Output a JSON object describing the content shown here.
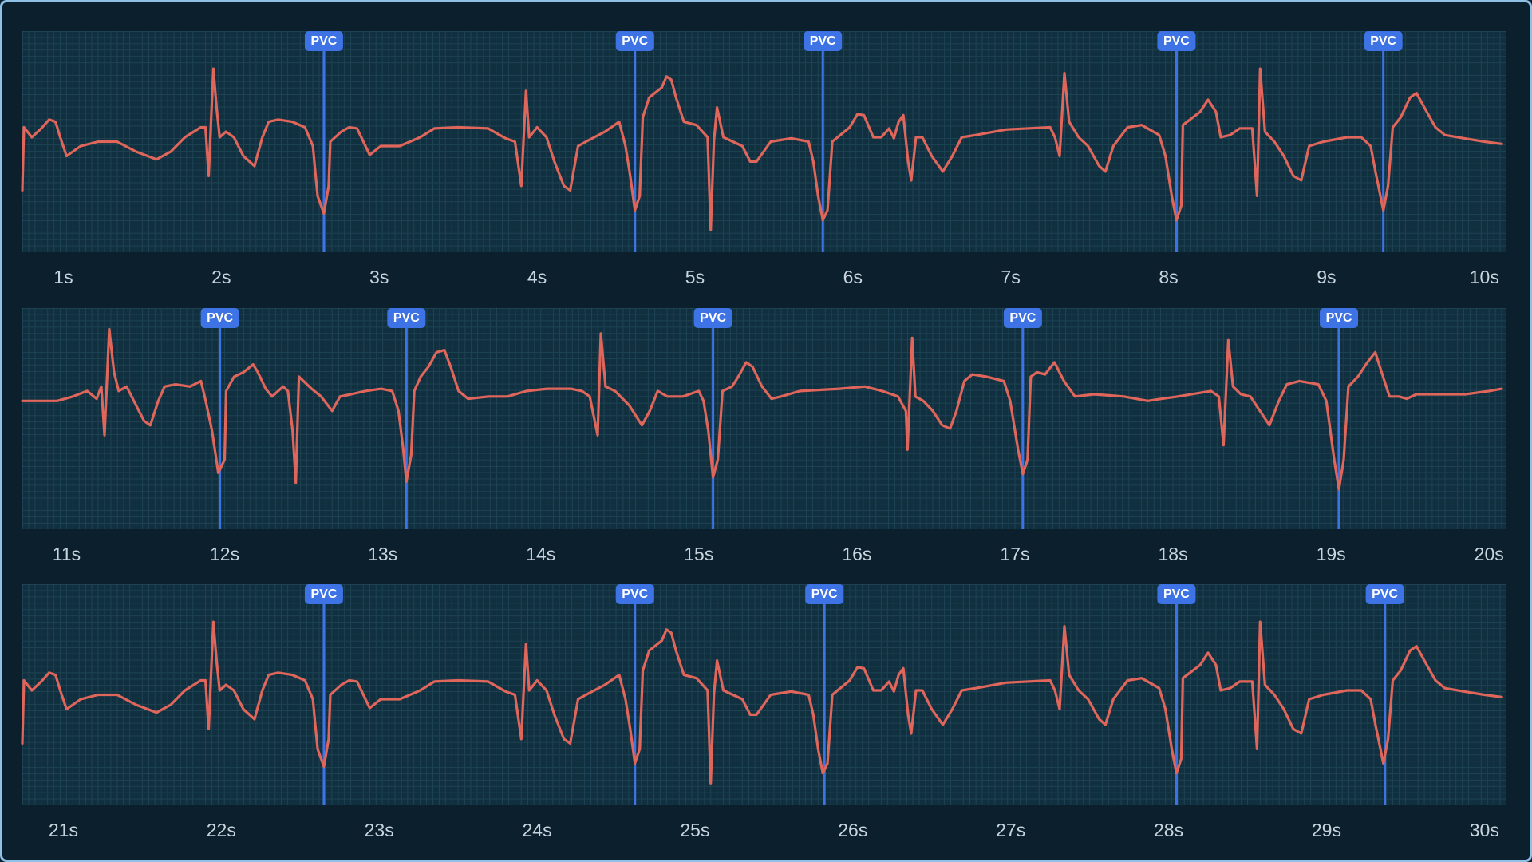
{
  "chart_data": [
    {
      "type": "line",
      "color": "#e0665b",
      "grid": true,
      "marker_color": "#3e73e6",
      "xlim": [
        0.74,
        10.14
      ],
      "ylim": [
        -1,
        1
      ],
      "xticks": [
        {
          "value": 1,
          "label": "1s"
        },
        {
          "value": 2,
          "label": "2s"
        },
        {
          "value": 3,
          "label": "3s"
        },
        {
          "value": 4,
          "label": "4s"
        },
        {
          "value": 5,
          "label": "5s"
        },
        {
          "value": 6,
          "label": "6s"
        },
        {
          "value": 7,
          "label": "7s"
        },
        {
          "value": 8,
          "label": "8s"
        },
        {
          "value": 9,
          "label": "9s"
        },
        {
          "value": 10,
          "label": "10s"
        }
      ],
      "annotations": [
        {
          "x": 2.65,
          "label": "PVC"
        },
        {
          "x": 4.62,
          "label": "PVC"
        },
        {
          "x": 5.81,
          "label": "PVC"
        },
        {
          "x": 8.05,
          "label": "PVC"
        },
        {
          "x": 9.36,
          "label": "PVC"
        }
      ],
      "x": [
        0.74,
        0.75,
        0.8,
        0.86,
        0.91,
        0.95,
        0.98,
        1.02,
        1.11,
        1.22,
        1.34,
        1.46,
        1.59,
        1.68,
        1.77,
        1.87,
        1.9,
        1.92,
        1.95,
        1.97,
        1.99,
        2.03,
        2.08,
        2.14,
        2.21,
        2.26,
        2.3,
        2.36,
        2.45,
        2.53,
        2.58,
        2.61,
        2.65,
        2.68,
        2.69,
        2.76,
        2.81,
        2.86,
        2.9,
        2.94,
        3.01,
        3.13,
        3.26,
        3.35,
        3.5,
        3.69,
        3.8,
        3.86,
        3.9,
        3.93,
        3.95,
        4.0,
        4.06,
        4.11,
        4.17,
        4.21,
        4.26,
        4.31,
        4.43,
        4.52,
        4.56,
        4.59,
        4.62,
        4.65,
        4.67,
        4.71,
        4.79,
        4.82,
        4.85,
        4.88,
        4.93,
        5.01,
        5.08,
        5.1,
        5.12,
        5.14,
        5.18,
        5.3,
        5.35,
        5.39,
        5.48,
        5.61,
        5.72,
        5.75,
        5.78,
        5.81,
        5.84,
        5.87,
        5.98,
        6.03,
        6.07,
        6.13,
        6.18,
        6.23,
        6.26,
        6.29,
        6.32,
        6.35,
        6.37,
        6.4,
        6.44,
        6.5,
        6.57,
        6.63,
        6.69,
        6.78,
        6.97,
        7.25,
        7.28,
        7.31,
        7.34,
        7.37,
        7.43,
        7.49,
        7.56,
        7.6,
        7.65,
        7.74,
        7.83,
        7.94,
        7.98,
        8.02,
        8.05,
        8.08,
        8.09,
        8.2,
        8.25,
        8.3,
        8.33,
        8.39,
        8.45,
        8.53,
        8.56,
        8.58,
        8.61,
        8.67,
        8.73,
        8.79,
        8.84,
        8.89,
        8.98,
        9.13,
        9.22,
        9.28,
        9.31,
        9.36,
        9.39,
        9.42,
        9.47,
        9.53,
        9.57,
        9.62,
        9.69,
        9.75,
        9.87,
        10.0,
        10.11
      ],
      "values": [
        -0.44,
        0.13,
        0.04,
        0.12,
        0.2,
        0.18,
        0.04,
        -0.13,
        -0.04,
        0,
        0,
        -0.09,
        -0.16,
        -0.09,
        0.04,
        0.13,
        0.13,
        -0.31,
        0.66,
        0.31,
        0.04,
        0.09,
        0.04,
        -0.13,
        -0.22,
        0.04,
        0.18,
        0.2,
        0.18,
        0.13,
        -0.04,
        -0.49,
        -0.65,
        -0.4,
        0,
        0.09,
        0.13,
        0.12,
        0,
        -0.12,
        -0.04,
        -0.04,
        0.04,
        0.12,
        0.13,
        0.12,
        0.03,
        0,
        -0.4,
        0.46,
        0.04,
        0.13,
        0.04,
        -0.18,
        -0.4,
        -0.44,
        -0.04,
        0,
        0.09,
        0.18,
        -0.04,
        -0.31,
        -0.62,
        -0.49,
        0.22,
        0.4,
        0.49,
        0.59,
        0.56,
        0.4,
        0.18,
        0.15,
        0.04,
        -0.8,
        0,
        0.31,
        0.04,
        -0.04,
        -0.18,
        -0.18,
        0,
        0.03,
        0,
        -0.18,
        -0.49,
        -0.71,
        -0.62,
        0,
        0.13,
        0.25,
        0.24,
        0.04,
        0.04,
        0.12,
        0.03,
        0.18,
        0.24,
        -0.18,
        -0.35,
        0.04,
        0.04,
        -0.13,
        -0.27,
        -0.13,
        0.04,
        0.06,
        0.11,
        0.13,
        0.04,
        -0.13,
        0.62,
        0.18,
        0.04,
        -0.04,
        -0.22,
        -0.27,
        -0.04,
        0.13,
        0.15,
        0.06,
        -0.13,
        -0.49,
        -0.71,
        -0.58,
        0.15,
        0.27,
        0.38,
        0.27,
        0.04,
        0.06,
        0.12,
        0.12,
        -0.49,
        0.66,
        0.09,
        0,
        -0.13,
        -0.31,
        -0.35,
        -0.04,
        0,
        0.04,
        0.04,
        -0.04,
        -0.27,
        -0.62,
        -0.4,
        0.13,
        0.22,
        0.4,
        0.44,
        0.31,
        0.13,
        0.06,
        0.03,
        0,
        -0.02
      ]
    },
    {
      "type": "line",
      "color": "#e0665b",
      "grid": true,
      "marker_color": "#3e73e6",
      "xlim": [
        10.72,
        20.11
      ],
      "ylim": [
        -1,
        1
      ],
      "xticks": [
        {
          "value": 11,
          "label": "11s"
        },
        {
          "value": 12,
          "label": "12s"
        },
        {
          "value": 13,
          "label": "13s"
        },
        {
          "value": 14,
          "label": "14s"
        },
        {
          "value": 15,
          "label": "15s"
        },
        {
          "value": 16,
          "label": "16s"
        },
        {
          "value": 17,
          "label": "17s"
        },
        {
          "value": 18,
          "label": "18s"
        },
        {
          "value": 19,
          "label": "19s"
        },
        {
          "value": 20,
          "label": "20s"
        }
      ],
      "annotations": [
        {
          "x": 11.97,
          "label": "PVC"
        },
        {
          "x": 13.15,
          "label": "PVC"
        },
        {
          "x": 15.09,
          "label": "PVC"
        },
        {
          "x": 17.05,
          "label": "PVC"
        },
        {
          "x": 19.05,
          "label": "PVC"
        }
      ],
      "x": [
        10.72,
        10.94,
        11.04,
        11.13,
        11.19,
        11.22,
        11.24,
        11.27,
        11.3,
        11.33,
        11.38,
        11.44,
        11.49,
        11.53,
        11.58,
        11.62,
        11.69,
        11.78,
        11.85,
        11.88,
        11.92,
        11.96,
        12.0,
        12.01,
        12.06,
        12.12,
        12.18,
        12.21,
        12.26,
        12.3,
        12.37,
        12.4,
        12.43,
        12.45,
        12.47,
        12.55,
        12.61,
        12.68,
        12.73,
        12.8,
        12.89,
        12.99,
        13.06,
        13.1,
        13.13,
        13.15,
        13.18,
        13.2,
        13.24,
        13.29,
        13.34,
        13.39,
        13.43,
        13.48,
        13.54,
        13.67,
        13.79,
        13.91,
        14.04,
        14.19,
        14.26,
        14.31,
        14.36,
        14.38,
        14.41,
        14.47,
        14.56,
        14.64,
        14.69,
        14.74,
        14.8,
        14.9,
        15.0,
        15.03,
        15.06,
        15.09,
        15.12,
        15.15,
        15.21,
        15.25,
        15.3,
        15.34,
        15.4,
        15.46,
        15.52,
        15.64,
        15.89,
        16.05,
        16.16,
        16.26,
        16.31,
        16.32,
        16.35,
        16.37,
        16.42,
        16.48,
        16.54,
        16.59,
        16.63,
        16.68,
        16.73,
        16.82,
        16.93,
        16.97,
        17.02,
        17.05,
        17.08,
        17.1,
        17.14,
        17.19,
        17.25,
        17.31,
        17.38,
        17.5,
        17.69,
        17.84,
        17.93,
        18.03,
        18.24,
        18.29,
        18.32,
        18.35,
        18.38,
        18.43,
        18.49,
        18.55,
        18.61,
        18.67,
        18.72,
        18.8,
        18.92,
        18.97,
        19.02,
        19.05,
        19.08,
        19.11,
        19.17,
        19.23,
        19.28,
        19.32,
        19.37,
        19.43,
        19.48,
        19.54,
        19.85,
        20.0,
        20.08
      ],
      "values": [
        0.16,
        0.16,
        0.2,
        0.25,
        0.18,
        0.29,
        -0.15,
        0.81,
        0.42,
        0.25,
        0.29,
        0.12,
        -0.02,
        -0.06,
        0.16,
        0.29,
        0.31,
        0.29,
        0.34,
        0.16,
        -0.11,
        -0.49,
        -0.37,
        0.25,
        0.38,
        0.42,
        0.49,
        0.42,
        0.27,
        0.2,
        0.29,
        0.25,
        -0.11,
        -0.58,
        0.38,
        0.27,
        0.2,
        0.07,
        0.2,
        0.22,
        0.25,
        0.27,
        0.25,
        0.07,
        -0.28,
        -0.57,
        -0.33,
        0.25,
        0.38,
        0.47,
        0.6,
        0.62,
        0.47,
        0.25,
        0.18,
        0.2,
        0.2,
        0.25,
        0.27,
        0.27,
        0.25,
        0.2,
        -0.15,
        0.77,
        0.29,
        0.25,
        0.12,
        -0.06,
        0.07,
        0.25,
        0.2,
        0.2,
        0.25,
        0.16,
        -0.11,
        -0.53,
        -0.37,
        0.25,
        0.29,
        0.38,
        0.51,
        0.47,
        0.29,
        0.18,
        0.2,
        0.25,
        0.27,
        0.29,
        0.25,
        0.2,
        0.07,
        -0.28,
        0.73,
        0.2,
        0.16,
        0.07,
        -0.06,
        -0.09,
        0.07,
        0.34,
        0.4,
        0.38,
        0.34,
        0.16,
        -0.28,
        -0.5,
        -0.37,
        0.38,
        0.42,
        0.4,
        0.51,
        0.34,
        0.2,
        0.22,
        0.2,
        0.16,
        0.18,
        0.2,
        0.25,
        0.2,
        -0.24,
        0.71,
        0.29,
        0.22,
        0.2,
        0.07,
        -0.06,
        0.16,
        0.31,
        0.34,
        0.31,
        0.16,
        -0.37,
        -0.64,
        -0.37,
        0.29,
        0.38,
        0.51,
        0.6,
        0.42,
        0.2,
        0.2,
        0.18,
        0.22,
        0.22,
        0.25,
        0.27
      ]
    },
    {
      "type": "line",
      "color": "#e0665b",
      "grid": true,
      "marker_color": "#3e73e6",
      "xlim": [
        20.74,
        30.14
      ],
      "ylim": [
        -1,
        1
      ],
      "xticks": [
        {
          "value": 21,
          "label": "21s"
        },
        {
          "value": 22,
          "label": "22s"
        },
        {
          "value": 23,
          "label": "23s"
        },
        {
          "value": 24,
          "label": "24s"
        },
        {
          "value": 25,
          "label": "25s"
        },
        {
          "value": 26,
          "label": "26s"
        },
        {
          "value": 27,
          "label": "27s"
        },
        {
          "value": 28,
          "label": "28s"
        },
        {
          "value": 29,
          "label": "29s"
        },
        {
          "value": 30,
          "label": "30s"
        }
      ],
      "annotations": [
        {
          "x": 22.65,
          "label": "PVC"
        },
        {
          "x": 24.62,
          "label": "PVC"
        },
        {
          "x": 25.82,
          "label": "PVC"
        },
        {
          "x": 28.05,
          "label": "PVC"
        },
        {
          "x": 29.37,
          "label": "PVC"
        }
      ],
      "x": [
        20.74,
        20.75,
        20.8,
        20.86,
        20.91,
        20.95,
        20.98,
        21.02,
        21.11,
        21.22,
        21.34,
        21.46,
        21.59,
        21.68,
        21.77,
        21.87,
        21.9,
        21.92,
        21.95,
        21.97,
        21.99,
        22.03,
        22.08,
        22.14,
        22.21,
        22.26,
        22.3,
        22.36,
        22.45,
        22.53,
        22.58,
        22.61,
        22.65,
        22.68,
        22.69,
        22.76,
        22.81,
        22.86,
        22.9,
        22.94,
        23.01,
        23.13,
        23.26,
        23.35,
        23.5,
        23.69,
        23.8,
        23.86,
        23.9,
        23.93,
        23.95,
        24.0,
        24.06,
        24.11,
        24.17,
        24.21,
        24.26,
        24.31,
        24.43,
        24.52,
        24.56,
        24.59,
        24.62,
        24.65,
        24.67,
        24.71,
        24.79,
        24.82,
        24.85,
        24.88,
        24.93,
        25.01,
        25.08,
        25.1,
        25.12,
        25.14,
        25.18,
        25.3,
        25.35,
        25.39,
        25.48,
        25.61,
        25.72,
        25.75,
        25.78,
        25.81,
        25.84,
        25.87,
        25.98,
        26.03,
        26.07,
        26.13,
        26.18,
        26.23,
        26.26,
        26.29,
        26.32,
        26.35,
        26.37,
        26.4,
        26.44,
        26.5,
        26.57,
        26.63,
        26.69,
        26.78,
        26.97,
        27.25,
        27.28,
        27.31,
        27.34,
        27.37,
        27.43,
        27.49,
        27.56,
        27.6,
        27.65,
        27.74,
        27.83,
        27.94,
        27.98,
        28.02,
        28.05,
        28.08,
        28.09,
        28.2,
        28.25,
        28.3,
        28.33,
        28.39,
        28.45,
        28.53,
        28.56,
        28.58,
        28.61,
        28.67,
        28.73,
        28.79,
        28.84,
        28.89,
        28.98,
        29.13,
        29.22,
        29.28,
        29.31,
        29.36,
        29.39,
        29.42,
        29.47,
        29.53,
        29.57,
        29.62,
        29.69,
        29.75,
        29.87,
        30.0,
        30.11
      ],
      "values": [
        -0.44,
        0.13,
        0.04,
        0.12,
        0.2,
        0.18,
        0.04,
        -0.13,
        -0.04,
        0,
        0,
        -0.09,
        -0.16,
        -0.09,
        0.04,
        0.13,
        0.13,
        -0.31,
        0.66,
        0.31,
        0.04,
        0.09,
        0.04,
        -0.13,
        -0.22,
        0.04,
        0.18,
        0.2,
        0.18,
        0.13,
        -0.04,
        -0.49,
        -0.65,
        -0.4,
        0,
        0.09,
        0.13,
        0.12,
        0,
        -0.12,
        -0.04,
        -0.04,
        0.04,
        0.12,
        0.13,
        0.12,
        0.03,
        0,
        -0.4,
        0.46,
        0.04,
        0.13,
        0.04,
        -0.18,
        -0.4,
        -0.44,
        -0.04,
        0,
        0.09,
        0.18,
        -0.04,
        -0.31,
        -0.62,
        -0.49,
        0.22,
        0.4,
        0.49,
        0.59,
        0.56,
        0.4,
        0.18,
        0.15,
        0.04,
        -0.8,
        0,
        0.31,
        0.04,
        -0.04,
        -0.18,
        -0.18,
        0,
        0.03,
        0,
        -0.18,
        -0.49,
        -0.71,
        -0.62,
        0,
        0.13,
        0.25,
        0.24,
        0.04,
        0.04,
        0.12,
        0.03,
        0.18,
        0.24,
        -0.18,
        -0.35,
        0.04,
        0.04,
        -0.13,
        -0.27,
        -0.13,
        0.04,
        0.06,
        0.11,
        0.13,
        0.04,
        -0.13,
        0.62,
        0.18,
        0.04,
        -0.04,
        -0.22,
        -0.27,
        -0.04,
        0.13,
        0.15,
        0.06,
        -0.13,
        -0.49,
        -0.71,
        -0.58,
        0.15,
        0.27,
        0.38,
        0.27,
        0.04,
        0.06,
        0.12,
        0.12,
        -0.49,
        0.66,
        0.09,
        0,
        -0.13,
        -0.31,
        -0.35,
        -0.04,
        0,
        0.04,
        0.04,
        -0.04,
        -0.27,
        -0.62,
        -0.4,
        0.13,
        0.22,
        0.4,
        0.44,
        0.31,
        0.13,
        0.06,
        0.03,
        0,
        -0.02
      ]
    }
  ]
}
